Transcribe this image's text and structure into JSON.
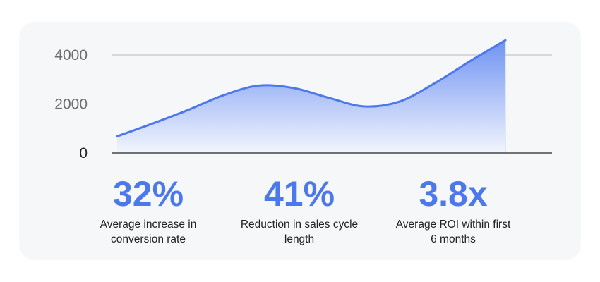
{
  "chart_data": {
    "type": "area",
    "title": "",
    "xlabel": "",
    "ylabel": "",
    "ylim": [
      0,
      4000
    ],
    "yticks": [
      0,
      2000,
      4000
    ],
    "grid": true,
    "x": [
      0,
      1,
      2,
      3,
      4,
      5,
      6,
      7,
      8,
      9,
      10,
      11
    ],
    "series": [
      {
        "values": [
          680,
          1200,
          1750,
          2350,
          2750,
          2650,
          2250,
          1900,
          2100,
          2850,
          3750,
          4600
        ]
      }
    ],
    "colors": {
      "line": "#4c78ec",
      "fill_top": "#6f93f2",
      "fill_bottom": "#f2f5fd",
      "grid": "#b8b8b8",
      "baseline": "#222222"
    }
  },
  "stats": [
    {
      "value": "32%",
      "label": "Average increase in conversion rate"
    },
    {
      "value": "41%",
      "label": "Reduction in sales cycle length"
    },
    {
      "value": "3.8x",
      "label": "Average ROI within first 6 months"
    }
  ]
}
